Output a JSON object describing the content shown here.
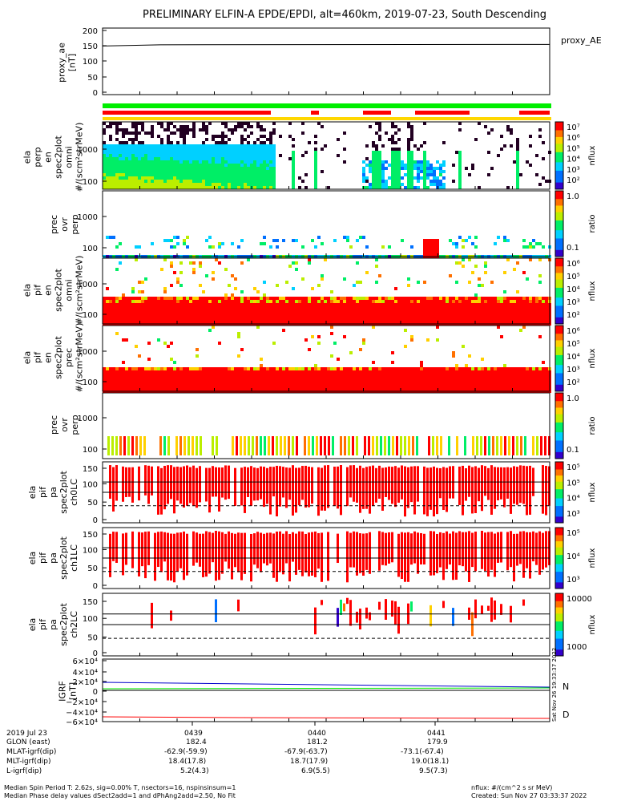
{
  "title": "PRELIMINARY ELFIN-A EPDE/EPDI, alt=460km, 2019-07-23, South Descending",
  "colors": {
    "red": "#ff0000",
    "green": "#00ee00",
    "yellow": "#ffd700",
    "blue": "#0000cc",
    "dark": "#220022"
  },
  "chart_data": {
    "type": "heatmap",
    "time_ticks": [
      "0439",
      "0440",
      "0441"
    ],
    "panels": [
      {
        "id": "proxy_ae",
        "ylabel": [
          "proxy_ae",
          "[nT]"
        ],
        "yticks": [
          "200",
          "150",
          "100",
          "50",
          "0"
        ],
        "line_label": "proxy_AE",
        "line_value": 155
      },
      {
        "id": "bars",
        "legend": "colored status bars (green / red / yellow)"
      },
      {
        "id": "perp_spec",
        "ylabel": [
          "ela",
          "perp",
          "en",
          "spec2plot",
          "omni",
          "#/(scm²strMeV)"
        ],
        "yticks": [
          "1000",
          "100"
        ],
        "cbar_label": "nflux",
        "cbar_ticks": [
          "10⁷",
          "10⁶",
          "10⁵",
          "10⁴",
          "10³",
          "10²"
        ]
      },
      {
        "id": "prec_ovr_perp",
        "ylabel": [
          "prec",
          "ovr",
          "perp"
        ],
        "yticks": [
          "1000",
          "100"
        ],
        "cbar_label": "ratio",
        "cbar_ticks": [
          "1.0",
          "0.1"
        ]
      },
      {
        "id": "omni_spec",
        "ylabel": [
          "ela",
          "pif",
          "en",
          "spec2plot",
          "omni",
          "#/(scm²strMeV)"
        ],
        "yticks": [
          "1000",
          "100"
        ],
        "cbar_label": "nflux",
        "cbar_ticks": [
          "10⁶",
          "10⁵",
          "10⁴",
          "10³",
          "10²"
        ]
      },
      {
        "id": "prec_spec",
        "ylabel": [
          "ela",
          "pif",
          "en",
          "spec2plot",
          "prec",
          "#/(scm²strMeV)"
        ],
        "yticks": [
          "1000",
          "100"
        ],
        "cbar_label": "nflux",
        "cbar_ticks": [
          "10⁶",
          "10⁵",
          "10⁴",
          "10³",
          "10²"
        ]
      },
      {
        "id": "prec_ovr_perp2",
        "ylabel": [
          "prec",
          "ovr",
          "perp"
        ],
        "yticks": [
          "1000",
          "100"
        ],
        "cbar_label": "ratio",
        "cbar_ticks": [
          "1.0",
          "0.1"
        ]
      },
      {
        "id": "pa_ch0",
        "ylabel": [
          "ela",
          "pif",
          "pa",
          "spec2plot",
          "ch0LC"
        ],
        "yticks": [
          "150",
          "100",
          "50",
          "0"
        ],
        "cbar_label": "nflux",
        "cbar_ticks": [
          "10⁵",
          "10⁵",
          "10⁴",
          "10³"
        ]
      },
      {
        "id": "pa_ch1",
        "ylabel": [
          "ela",
          "pif",
          "pa",
          "spec2plot",
          "ch1LC"
        ],
        "yticks": [
          "150",
          "100",
          "50",
          "0"
        ],
        "cbar_label": "nflux",
        "cbar_ticks": [
          "10⁵",
          "10⁴",
          "10³"
        ]
      },
      {
        "id": "pa_ch2",
        "ylabel": [
          "ela",
          "pif",
          "pa",
          "spec2plot",
          "ch2LC"
        ],
        "yticks": [
          "150",
          "100",
          "50",
          "0"
        ],
        "cbar_label": "nflux",
        "cbar_ticks": [
          "10000",
          "1000"
        ]
      },
      {
        "id": "igrf",
        "ylabel": [
          "IGRF",
          "[nT]"
        ],
        "yticks": [
          "6×10⁴",
          "4×10⁴",
          "2×10⁴",
          "0",
          "−2×10⁴",
          "−4×10⁴",
          "−6×10⁴"
        ],
        "legend": [
          "N",
          "D"
        ]
      }
    ]
  },
  "vertical_stamp": "Sat Nov 26 19:33:37 2022",
  "footer": {
    "rows": [
      {
        "label": "2019 Jul 23",
        "v1": "0439",
        "v2": "0440",
        "v3": "0441"
      },
      {
        "label": "GLON (east)",
        "v1": "182.4",
        "v2": "181.2",
        "v3": "179.9"
      },
      {
        "label": "MLAT-igrf(dip)",
        "v1": "-62.9(-59.9)",
        "v2": "-67.9(-63.7)",
        "v3": "-73.1(-67.4)"
      },
      {
        "label": "MLT-igrf(dip)",
        "v1": "18.4(17.8)",
        "v2": "18.7(17.9)",
        "v3": "19.0(18.1)"
      },
      {
        "label": "L-igrf(dip)",
        "v1": "5.2(4.3)",
        "v2": "6.9(5.5)",
        "v3": "9.5(7.3)"
      }
    ],
    "note1": "Median Spin Period T: 2.62s, sig=0.00% T, nsectors=16, nspinsinsum=1",
    "note2": "Median Phase delay values dSect2add=1 and dPhAng2add=2.50, No Fit",
    "right1": "nflux: #/(cm^2 s sr MeV)",
    "right2": "Created: Sun Nov 27 03:33:37 2022"
  }
}
